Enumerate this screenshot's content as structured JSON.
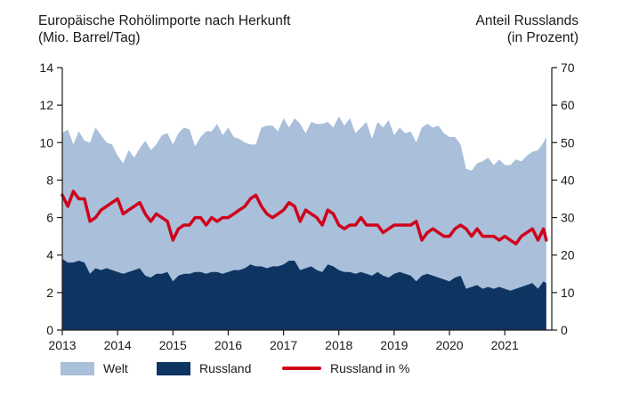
{
  "chart_data": {
    "type": "area",
    "title_left": [
      "Europäische Rohölimporte nach Herkunft",
      "(Mio. Barrel/Tag)"
    ],
    "title_right": [
      "Anteil Russlands",
      "(in Prozent)"
    ],
    "x_tick_labels": [
      "2013",
      "2014",
      "2015",
      "2016",
      "2017",
      "2018",
      "2019",
      "2020",
      "2021"
    ],
    "xlim": [
      2013,
      2021.85
    ],
    "ylim_left": [
      0,
      14
    ],
    "ylim_right": [
      0,
      70
    ],
    "left_ticks": [
      0,
      2,
      4,
      6,
      8,
      10,
      12,
      14
    ],
    "right_ticks": [
      0,
      10,
      20,
      30,
      40,
      50,
      60,
      70
    ],
    "grid": false,
    "legend_position": "bottom",
    "colors": {
      "welt": "#a9bfda",
      "russland": "#0e3461",
      "russland_pct": "#d0021b"
    },
    "x": [
      2013.0,
      2013.1,
      2013.2,
      2013.3,
      2013.4,
      2013.5,
      2013.6,
      2013.7,
      2013.8,
      2013.9,
      2014.0,
      2014.1,
      2014.2,
      2014.3,
      2014.4,
      2014.5,
      2014.6,
      2014.7,
      2014.8,
      2014.9,
      2015.0,
      2015.1,
      2015.2,
      2015.3,
      2015.4,
      2015.5,
      2015.6,
      2015.7,
      2015.8,
      2015.9,
      2016.0,
      2016.1,
      2016.2,
      2016.3,
      2016.4,
      2016.5,
      2016.6,
      2016.7,
      2016.8,
      2016.9,
      2017.0,
      2017.1,
      2017.2,
      2017.3,
      2017.4,
      2017.5,
      2017.6,
      2017.7,
      2017.8,
      2017.9,
      2018.0,
      2018.1,
      2018.2,
      2018.3,
      2018.4,
      2018.5,
      2018.6,
      2018.7,
      2018.8,
      2018.9,
      2019.0,
      2019.1,
      2019.2,
      2019.3,
      2019.4,
      2019.5,
      2019.6,
      2019.7,
      2019.8,
      2019.9,
      2020.0,
      2020.1,
      2020.2,
      2020.3,
      2020.4,
      2020.5,
      2020.6,
      2020.7,
      2020.8,
      2020.9,
      2021.0,
      2021.1,
      2021.2,
      2021.3,
      2021.4,
      2021.5,
      2021.6,
      2021.7,
      2021.75
    ],
    "series": [
      {
        "name": "Welt",
        "values": [
          10.5,
          10.7,
          9.9,
          10.6,
          10.1,
          10.0,
          10.8,
          10.4,
          10.0,
          9.9,
          9.3,
          8.9,
          9.6,
          9.2,
          9.7,
          10.1,
          9.6,
          9.9,
          10.4,
          10.5,
          9.9,
          10.5,
          10.8,
          10.7,
          9.8,
          10.3,
          10.6,
          10.6,
          11.0,
          10.4,
          10.8,
          10.3,
          10.2,
          10.0,
          9.9,
          9.9,
          10.8,
          10.9,
          10.9,
          10.6,
          11.3,
          10.8,
          11.3,
          11.0,
          10.5,
          11.1,
          11.0,
          11.0,
          11.1,
          10.8,
          11.4,
          10.9,
          11.3,
          10.5,
          10.8,
          11.1,
          10.2,
          11.1,
          10.8,
          11.2,
          10.4,
          10.8,
          10.5,
          10.6,
          10.0,
          10.8,
          11.0,
          10.8,
          10.9,
          10.5,
          10.3,
          10.3,
          9.9,
          8.6,
          8.5,
          8.9,
          9.0,
          9.2,
          8.8,
          9.1,
          8.8,
          8.8,
          9.1,
          9.0,
          9.3,
          9.5,
          9.6,
          10.0,
          10.3
        ]
      },
      {
        "name": "Russland",
        "values": [
          3.8,
          3.6,
          3.6,
          3.7,
          3.6,
          3.0,
          3.3,
          3.2,
          3.3,
          3.2,
          3.1,
          3.0,
          3.1,
          3.2,
          3.3,
          2.9,
          2.8,
          3.0,
          3.0,
          3.1,
          2.6,
          2.9,
          3.0,
          3.0,
          3.1,
          3.1,
          3.0,
          3.1,
          3.1,
          3.0,
          3.1,
          3.2,
          3.2,
          3.3,
          3.5,
          3.4,
          3.4,
          3.3,
          3.4,
          3.4,
          3.5,
          3.7,
          3.7,
          3.2,
          3.3,
          3.4,
          3.2,
          3.1,
          3.5,
          3.4,
          3.2,
          3.1,
          3.1,
          3.0,
          3.1,
          3.0,
          2.9,
          3.1,
          2.9,
          2.8,
          3.0,
          3.1,
          3.0,
          2.9,
          2.6,
          2.9,
          3.0,
          2.9,
          2.8,
          2.7,
          2.6,
          2.8,
          2.9,
          2.2,
          2.3,
          2.4,
          2.2,
          2.3,
          2.2,
          2.3,
          2.2,
          2.1,
          2.2,
          2.3,
          2.4,
          2.5,
          2.2,
          2.6,
          2.5
        ]
      },
      {
        "name": "Russland in %",
        "axis": "right",
        "values": [
          36,
          33,
          37,
          35,
          35,
          29,
          30,
          32,
          33,
          34,
          35,
          31,
          32,
          33,
          34,
          31,
          29,
          31,
          30,
          29,
          24,
          27,
          28,
          28,
          30,
          30,
          28,
          30,
          29,
          30,
          30,
          31,
          32,
          33,
          35,
          36,
          33,
          31,
          30,
          31,
          32,
          34,
          33,
          29,
          32,
          31,
          30,
          28,
          32,
          31,
          28,
          27,
          28,
          28,
          30,
          28,
          28,
          28,
          26,
          27,
          28,
          28,
          28,
          28,
          29,
          24,
          26,
          27,
          26,
          25,
          25,
          27,
          28,
          27,
          25,
          27,
          25,
          25,
          25,
          24,
          25,
          24,
          23,
          25,
          26,
          27,
          24,
          27,
          24
        ]
      }
    ],
    "legend": [
      "Welt",
      "Russland",
      "Russland in %"
    ]
  }
}
